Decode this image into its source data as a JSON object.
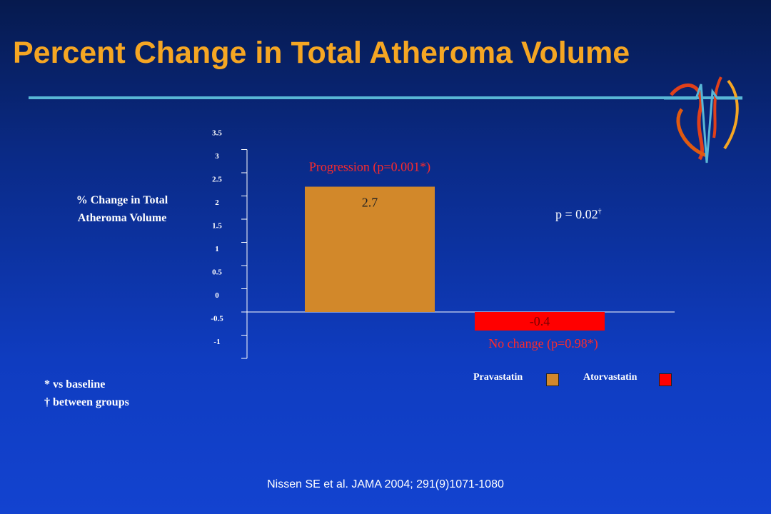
{
  "title": "Percent Change in Total Atheroma Volume",
  "y_axis_title_line1": "% Change in Total",
  "y_axis_title_line2": "Atheroma Volume",
  "p_value": "p = 0.02",
  "p_value_mark": "†",
  "footnotes": [
    "* vs baseline",
    "† between groups"
  ],
  "citation": "Nissen SE et al. JAMA 2004; 291(9)1071-1080",
  "colors": {
    "title": "#f5a623",
    "pravastatin": "#d2882a",
    "atorvastatin": "#ff0000",
    "annotation": "#ff2a2a",
    "rule": "#58b7d6"
  },
  "chart_data": {
    "type": "bar",
    "ylim": [
      -1,
      3.5
    ],
    "ylabel": "% Change in Total Atheroma Volume",
    "yticks": [
      "-1",
      "-0.5",
      "0",
      "0.5",
      "1",
      "1.5",
      "2",
      "2.5",
      "3",
      "3.5"
    ],
    "series": [
      {
        "name": "Pravastatin",
        "value": 2.7,
        "label": "2.7",
        "color": "#d2882a",
        "annotation": "Progression (p=0.001*)"
      },
      {
        "name": "Atorvastatin",
        "value": -0.4,
        "label": "-0.4",
        "color": "#ff0000",
        "annotation": "No change (p=0.98*)"
      }
    ]
  }
}
